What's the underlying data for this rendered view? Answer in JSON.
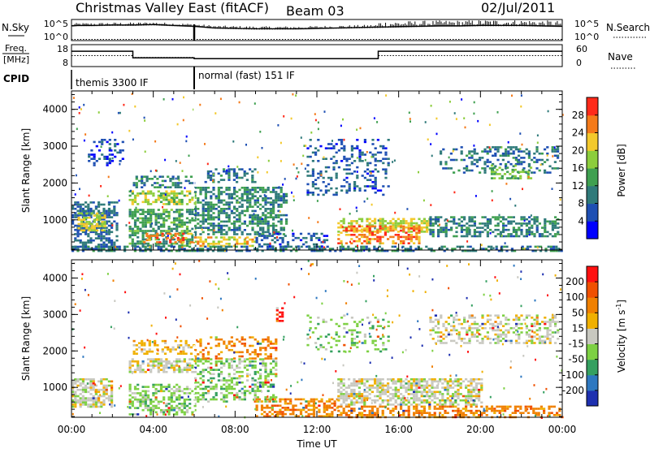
{
  "header": {
    "title": "Christmas Valley East (fitACF)",
    "beam": "Beam 03",
    "date": "02/Jul/2011"
  },
  "chart_data": [
    {
      "type": "line",
      "name": "N.Sky",
      "left_label": "N.Sky",
      "right_label": "N.Search",
      "left_ticks": [
        "10^5",
        "10^0"
      ],
      "right_ticks": [
        "10^5",
        "10^0"
      ],
      "x_range_hours": [
        0,
        24
      ],
      "sky_profile": [
        [
          0.0,
          3.5
        ],
        [
          0.3,
          3.6
        ],
        [
          1.0,
          3.6
        ],
        [
          2.0,
          3.7
        ],
        [
          3.0,
          3.7
        ],
        [
          4.0,
          3.8
        ],
        [
          5.0,
          3.6
        ],
        [
          6.0,
          3.4
        ],
        [
          7.0,
          3.0
        ],
        [
          8.0,
          2.9
        ],
        [
          9.0,
          2.8
        ],
        [
          10.0,
          2.8
        ],
        [
          11.0,
          2.8
        ],
        [
          12.0,
          2.9
        ],
        [
          13.0,
          3.0
        ],
        [
          14.0,
          3.1
        ],
        [
          15.0,
          3.2
        ],
        [
          16.0,
          3.3
        ],
        [
          17.0,
          3.4
        ],
        [
          18.0,
          3.5
        ],
        [
          19.0,
          3.5
        ],
        [
          20.0,
          3.6
        ],
        [
          21.0,
          3.6
        ],
        [
          22.0,
          3.6
        ],
        [
          23.0,
          3.5
        ],
        [
          24.0,
          3.4
        ]
      ],
      "search_level": 0.3
    },
    {
      "type": "line",
      "name": "Freq",
      "left_label_1": "Freq.",
      "left_label_2": "[MHz]",
      "right_label": "Nave",
      "left_ticks": [
        "18",
        "8"
      ],
      "right_ticks": [
        "60",
        "0"
      ],
      "freq_steps": [
        [
          0.0,
          15.0
        ],
        [
          3.0,
          15.0
        ],
        [
          3.0,
          12.0
        ],
        [
          6.0,
          12.0
        ],
        [
          6.0,
          11.6
        ],
        [
          15.0,
          11.6
        ],
        [
          15.0,
          15.0
        ],
        [
          24.0,
          15.0
        ]
      ],
      "nave_steps": [
        [
          0.0,
          30
        ],
        [
          3.0,
          30
        ],
        [
          3.0,
          25
        ],
        [
          6.0,
          25
        ],
        [
          6.0,
          22
        ],
        [
          15.0,
          22
        ],
        [
          15.0,
          30
        ],
        [
          24.0,
          30
        ]
      ]
    },
    {
      "type": "table",
      "name": "CPID",
      "label": "CPID",
      "segments": [
        {
          "start": 0.0,
          "end": 6.0,
          "text": "themis 3300 IF"
        },
        {
          "start": 6.0,
          "end": 24.0,
          "text": "normal (fast) 151 IF"
        }
      ]
    },
    {
      "type": "heatmap",
      "name": "power",
      "ylabel": "Slant Range [km]",
      "colorbar_label": "Power [dB]",
      "yticks": [
        1000,
        2000,
        3000,
        4000
      ],
      "ylim": [
        180,
        4500
      ],
      "colorbar_ticks": [
        "28",
        "24",
        "20",
        "16",
        "12",
        "8",
        "4"
      ],
      "colors": [
        "#0000ff",
        "#1e4fb3",
        "#2f7a7a",
        "#3fa050",
        "#8ccd3c",
        "#f3c92c",
        "#f47a1a",
        "#ff2a1a"
      ],
      "regions": [
        {
          "x": [
            0.0,
            2.2
          ],
          "y": [
            200,
            1500
          ],
          "v": 8,
          "d": 0.55
        },
        {
          "x": [
            0.3,
            1.6
          ],
          "y": [
            700,
            1200
          ],
          "v": 20,
          "d": 0.6
        },
        {
          "x": [
            0.8,
            2.5
          ],
          "y": [
            2500,
            3200
          ],
          "v": 6,
          "d": 0.25
        },
        {
          "x": [
            2.8,
            6.0
          ],
          "y": [
            1400,
            1800
          ],
          "v": 18,
          "d": 0.6
        },
        {
          "x": [
            3.0,
            6.0
          ],
          "y": [
            1900,
            2200
          ],
          "v": 11,
          "d": 0.45
        },
        {
          "x": [
            2.8,
            6.0
          ],
          "y": [
            300,
            1300
          ],
          "v": 13,
          "d": 0.6
        },
        {
          "x": [
            3.5,
            6.0
          ],
          "y": [
            400,
            650
          ],
          "v": 26,
          "d": 0.4
        },
        {
          "x": [
            6.0,
            10.5
          ],
          "y": [
            600,
            1900
          ],
          "v": 11,
          "d": 0.55
        },
        {
          "x": [
            6.5,
            9.0
          ],
          "y": [
            2000,
            2400
          ],
          "v": 9,
          "d": 0.35
        },
        {
          "x": [
            6.0,
            9.0
          ],
          "y": [
            300,
            550
          ],
          "v": 22,
          "d": 0.45
        },
        {
          "x": [
            9.0,
            12.5
          ],
          "y": [
            300,
            650
          ],
          "v": 7,
          "d": 0.4
        },
        {
          "x": [
            11.5,
            15.5
          ],
          "y": [
            1700,
            3200
          ],
          "v": 7,
          "d": 0.25
        },
        {
          "x": [
            13.0,
            17.5
          ],
          "y": [
            700,
            1050
          ],
          "v": 20,
          "d": 0.6
        },
        {
          "x": [
            13.0,
            17.0
          ],
          "y": [
            380,
            850
          ],
          "v": 26,
          "d": 0.5
        },
        {
          "x": [
            17.5,
            23.8
          ],
          "y": [
            550,
            1100
          ],
          "v": 11,
          "d": 0.5
        },
        {
          "x": [
            18.0,
            23.8
          ],
          "y": [
            2300,
            3000
          ],
          "v": 9,
          "d": 0.35
        },
        {
          "x": [
            20.5,
            22.5
          ],
          "y": [
            2100,
            2500
          ],
          "v": 16,
          "d": 0.4
        },
        {
          "x": [
            0.0,
            24.0
          ],
          "y": [
            180,
            300
          ],
          "v": 10,
          "d": 0.5
        }
      ]
    },
    {
      "type": "heatmap",
      "name": "velocity",
      "ylabel": "Slant Range [km]",
      "colorbar_label": "Velocity [m s^-1]",
      "yticks": [
        1000,
        2000,
        3000,
        4000
      ],
      "ylim": [
        180,
        4500
      ],
      "xlabel": "Time UT",
      "xticks": [
        "00:00",
        "04:00",
        "08:00",
        "12:00",
        "16:00",
        "20:00",
        "00:00"
      ],
      "colorbar_ticks": [
        "200",
        "100",
        "50",
        "15",
        "-15",
        "-50",
        "-100",
        "-200"
      ],
      "colors": [
        "#1e30b0",
        "#2e78c0",
        "#35a060",
        "#7dd043",
        "#c8c8c0",
        "#f0b000",
        "#f08000",
        "#f05000",
        "#ff1010"
      ],
      "regions": [
        {
          "x": [
            0.0,
            2.0
          ],
          "y": [
            450,
            1250
          ],
          "c": 4,
          "d": 0.6
        },
        {
          "x": [
            2.8,
            6.0
          ],
          "y": [
            1400,
            1800
          ],
          "c": 4,
          "d": 0.6
        },
        {
          "x": [
            2.8,
            6.0
          ],
          "y": [
            250,
            1100
          ],
          "c": 3,
          "d": 0.45
        },
        {
          "x": [
            3.0,
            6.0
          ],
          "y": [
            1900,
            2300
          ],
          "c": 5,
          "d": 0.4
        },
        {
          "x": [
            6.0,
            10.0
          ],
          "y": [
            600,
            1800
          ],
          "c": 3,
          "d": 0.45
        },
        {
          "x": [
            6.0,
            10.0
          ],
          "y": [
            1800,
            2400
          ],
          "c": 6,
          "d": 0.3
        },
        {
          "x": [
            9.0,
            13.0
          ],
          "y": [
            200,
            700
          ],
          "c": 6,
          "d": 0.5
        },
        {
          "x": [
            11.5,
            15.5
          ],
          "y": [
            2000,
            3000
          ],
          "c": 3,
          "d": 0.2
        },
        {
          "x": [
            13.0,
            20.0
          ],
          "y": [
            550,
            1250
          ],
          "c": 4,
          "d": 0.6
        },
        {
          "x": [
            13.0,
            24.0
          ],
          "y": [
            200,
            500
          ],
          "c": 6,
          "d": 0.45
        },
        {
          "x": [
            17.5,
            23.8
          ],
          "y": [
            2200,
            3000
          ],
          "c": 4,
          "d": 0.4
        },
        {
          "x": [
            10.0,
            10.3
          ],
          "y": [
            2800,
            3200
          ],
          "c": 8,
          "d": 0.6
        }
      ]
    }
  ]
}
